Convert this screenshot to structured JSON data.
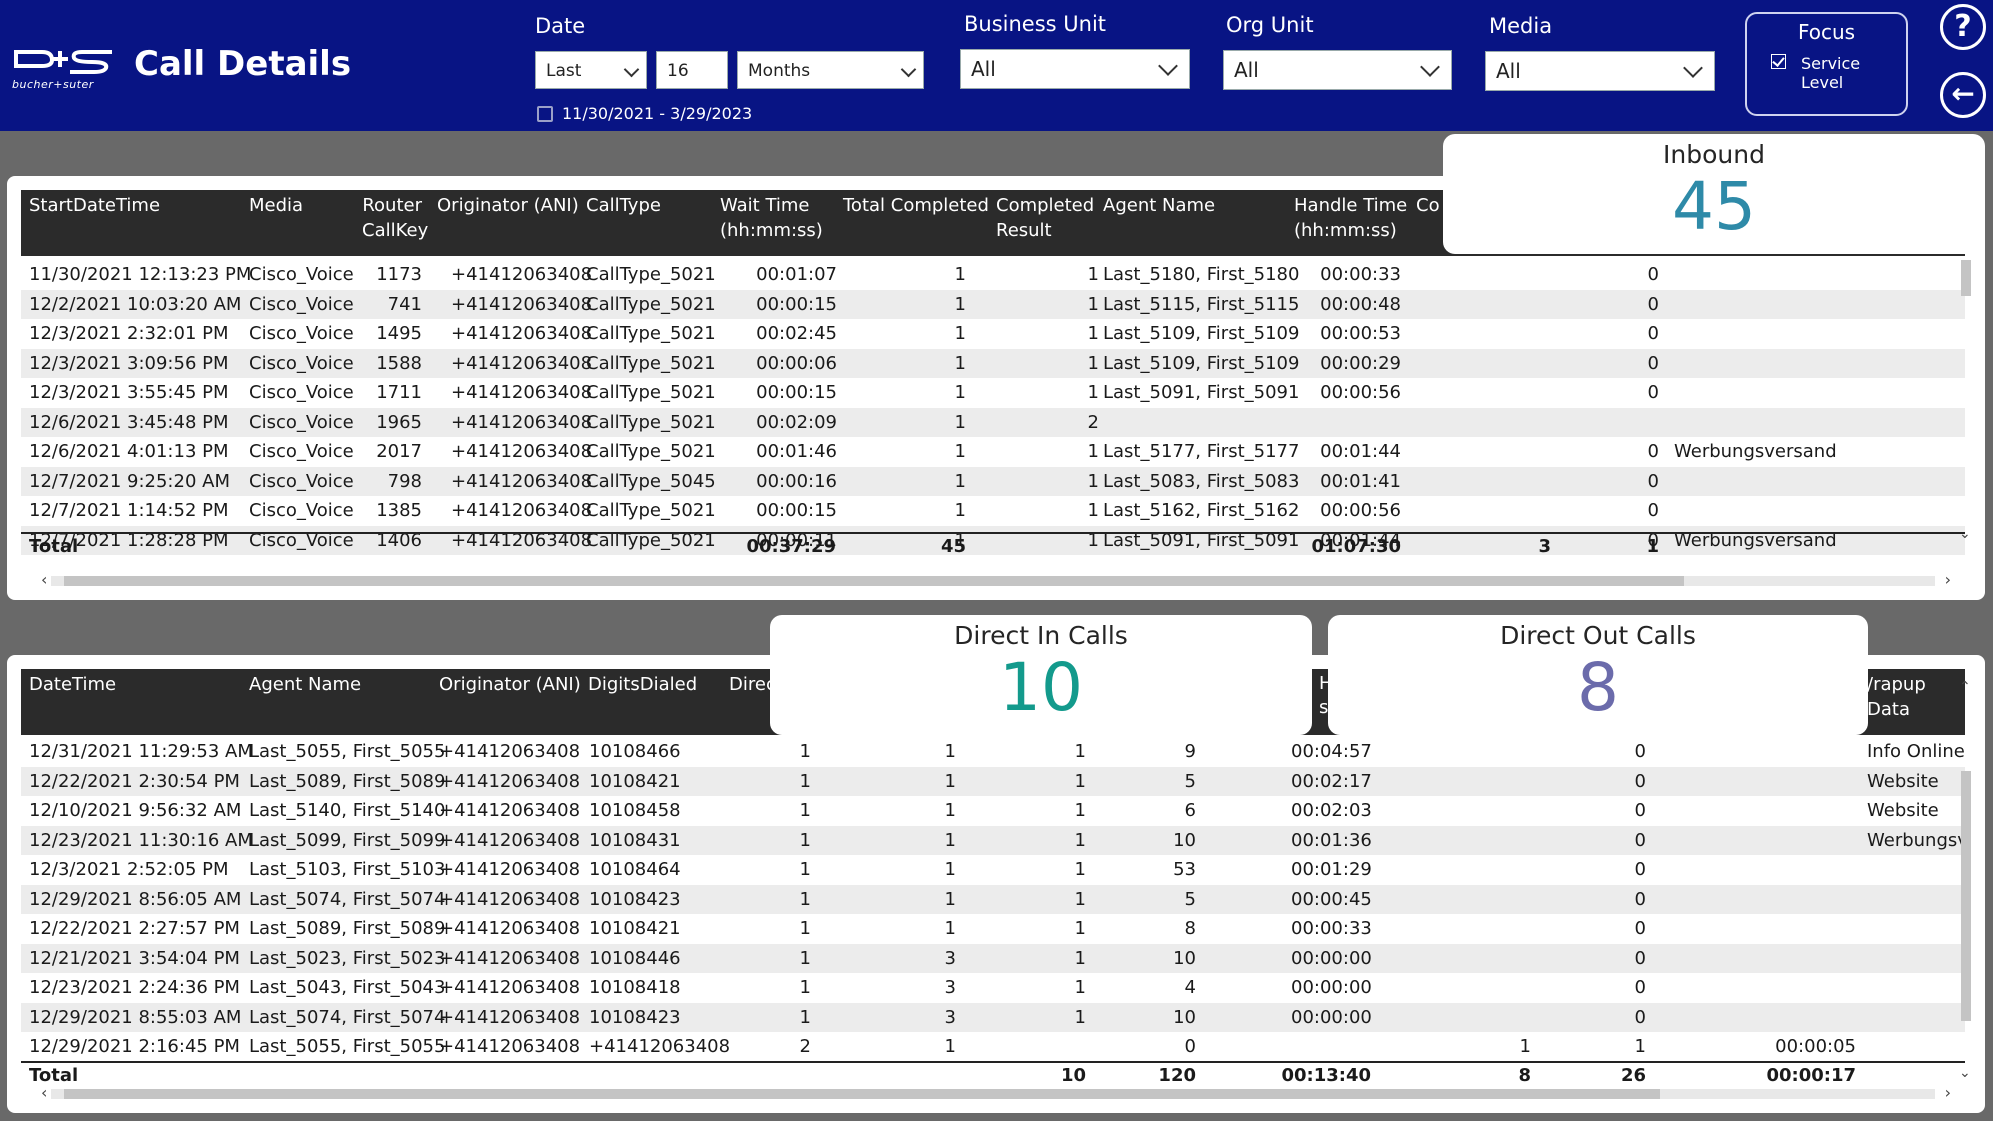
{
  "header": {
    "logo_text": "bucher+suter",
    "title": "Call Details",
    "date": {
      "label": "Date",
      "period": "Last",
      "count": "16",
      "unit": "Months",
      "range": "11/30/2021 - 3/29/2023"
    },
    "business_unit": {
      "label": "Business Unit",
      "value": "All"
    },
    "org_unit": {
      "label": "Org Unit",
      "value": "All"
    },
    "media": {
      "label": "Media",
      "value": "All"
    },
    "focus": {
      "title": "Focus",
      "option_label": "Service Level",
      "checked": true
    },
    "help_button": "?",
    "back_button": "←"
  },
  "inbound_table": {
    "columns": [
      "StartDateTime",
      "Media",
      "Router\nCallKey",
      "Originator (ANI)",
      "CallType",
      "Wait Time\n(hh:mm:ss)",
      "Total Completed",
      "Completed\nResult",
      "Agent Name",
      "Handle Time\n(hh:mm:ss)",
      "Co"
    ],
    "rows": [
      [
        "11/30/2021 12:13:23 PM",
        "Cisco_Voice",
        "1173",
        "+41412063408",
        "CallType_5021",
        "00:01:07",
        "1",
        "1",
        "Last_5180, First_5180",
        "00:00:33",
        "",
        "0",
        ""
      ],
      [
        "12/2/2021 10:03:20 AM",
        "Cisco_Voice",
        "741",
        "+41412063408",
        "CallType_5021",
        "00:00:15",
        "1",
        "1",
        "Last_5115, First_5115",
        "00:00:48",
        "",
        "0",
        ""
      ],
      [
        "12/3/2021 2:32:01 PM",
        "Cisco_Voice",
        "1495",
        "+41412063408",
        "CallType_5021",
        "00:02:45",
        "1",
        "1",
        "Last_5109, First_5109",
        "00:00:53",
        "",
        "0",
        ""
      ],
      [
        "12/3/2021 3:09:56 PM",
        "Cisco_Voice",
        "1588",
        "+41412063408",
        "CallType_5021",
        "00:00:06",
        "1",
        "1",
        "Last_5109, First_5109",
        "00:00:29",
        "",
        "0",
        ""
      ],
      [
        "12/3/2021 3:55:45 PM",
        "Cisco_Voice",
        "1711",
        "+41412063408",
        "CallType_5021",
        "00:00:15",
        "1",
        "1",
        "Last_5091, First_5091",
        "00:00:56",
        "",
        "0",
        ""
      ],
      [
        "12/6/2021 3:45:48 PM",
        "Cisco_Voice",
        "1965",
        "+41412063408",
        "CallType_5021",
        "00:02:09",
        "1",
        "2",
        "",
        "",
        "",
        "",
        ""
      ],
      [
        "12/6/2021 4:01:13 PM",
        "Cisco_Voice",
        "2017",
        "+41412063408",
        "CallType_5021",
        "00:01:46",
        "1",
        "1",
        "Last_5177, First_5177",
        "00:01:44",
        "",
        "0",
        "Werbungsversand"
      ],
      [
        "12/7/2021 9:25:20 AM",
        "Cisco_Voice",
        "798",
        "+41412063408",
        "CallType_5045",
        "00:00:16",
        "1",
        "1",
        "Last_5083, First_5083",
        "00:01:41",
        "",
        "0",
        ""
      ],
      [
        "12/7/2021 1:14:52 PM",
        "Cisco_Voice",
        "1385",
        "+41412063408",
        "CallType_5021",
        "00:00:15",
        "1",
        "1",
        "Last_5162, First_5162",
        "00:00:56",
        "",
        "0",
        ""
      ],
      [
        "12/7/2021 1:28:28 PM",
        "Cisco_Voice",
        "1406",
        "+41412063408",
        "CallType_5021",
        "00:00:11",
        "1",
        "1",
        "Last_5091, First_5091",
        "00:01:44",
        "",
        "0",
        "Werbungsversand"
      ]
    ],
    "total": {
      "label": "Total",
      "wait": "00:37:29",
      "completed": "45",
      "handle": "01:07:30",
      "col_a": "3",
      "col_b": "1"
    }
  },
  "direct_table": {
    "columns": [
      "DateTime",
      "Agent Name",
      "Originator (ANI)",
      "DigitsDialed",
      "Direc",
      "Ha\ns)",
      "/rapup Data"
    ],
    "rows": [
      [
        "12/31/2021 11:29:53 AM",
        "Last_5055, First_5055",
        "+41412063408",
        "10108466",
        "1",
        "1",
        "1",
        "9",
        "00:04:57",
        "",
        "0",
        "",
        "Info Online-S"
      ],
      [
        "12/22/2021 2:30:54 PM",
        "Last_5089, First_5089",
        "+41412063408",
        "10108421",
        "1",
        "1",
        "1",
        "5",
        "00:02:17",
        "",
        "0",
        "",
        "Website"
      ],
      [
        "12/10/2021 9:56:32 AM",
        "Last_5140, First_5140",
        "+41412063408",
        "10108458",
        "1",
        "1",
        "1",
        "6",
        "00:02:03",
        "",
        "0",
        "",
        "Website"
      ],
      [
        "12/23/2021 11:30:16 AM",
        "Last_5099, First_5099",
        "+41412063408",
        "10108431",
        "1",
        "1",
        "1",
        "10",
        "00:01:36",
        "",
        "0",
        "",
        "Werbungsver"
      ],
      [
        "12/3/2021 2:52:05 PM",
        "Last_5103, First_5103",
        "+41412063408",
        "10108464",
        "1",
        "1",
        "1",
        "53",
        "00:01:29",
        "",
        "0",
        "",
        ""
      ],
      [
        "12/29/2021 8:56:05 AM",
        "Last_5074, First_5074",
        "+41412063408",
        "10108423",
        "1",
        "1",
        "1",
        "5",
        "00:00:45",
        "",
        "0",
        "",
        ""
      ],
      [
        "12/22/2021 2:27:57 PM",
        "Last_5089, First_5089",
        "+41412063408",
        "10108421",
        "1",
        "1",
        "1",
        "8",
        "00:00:33",
        "",
        "0",
        "",
        ""
      ],
      [
        "12/21/2021 3:54:04 PM",
        "Last_5023, First_5023",
        "+41412063408",
        "10108446",
        "1",
        "3",
        "1",
        "10",
        "00:00:00",
        "",
        "0",
        "",
        ""
      ],
      [
        "12/23/2021 2:24:36 PM",
        "Last_5043, First_5043",
        "+41412063408",
        "10108418",
        "1",
        "3",
        "1",
        "4",
        "00:00:00",
        "",
        "0",
        "",
        ""
      ],
      [
        "12/29/2021 8:55:03 AM",
        "Last_5074, First_5074",
        "+41412063408",
        "10108423",
        "1",
        "3",
        "1",
        "10",
        "00:00:00",
        "",
        "0",
        "",
        ""
      ],
      [
        "12/29/2021 2:16:45 PM",
        "Last_5055, First_5055",
        "+41412063408",
        "+41412063408",
        "2",
        "1",
        "",
        "0",
        "",
        "1",
        "1",
        "00:00:05",
        ""
      ]
    ],
    "total": {
      "label": "Total",
      "c1": "10",
      "c2": "120",
      "c3": "00:13:40",
      "c4": "8",
      "c5": "26",
      "c6": "00:00:17"
    }
  },
  "kpis": {
    "inbound": {
      "title": "Inbound",
      "value": "45",
      "color": "#2e8aa8"
    },
    "direct_in": {
      "title": "Direct In Calls",
      "value": "10",
      "color": "#139a8c"
    },
    "direct_out": {
      "title": "Direct Out Calls",
      "value": "8",
      "color": "#6b6bab"
    }
  },
  "colors": {
    "header_bg": "#081484",
    "page_bg": "#696969",
    "table_header_bg": "#2b2b2b"
  }
}
